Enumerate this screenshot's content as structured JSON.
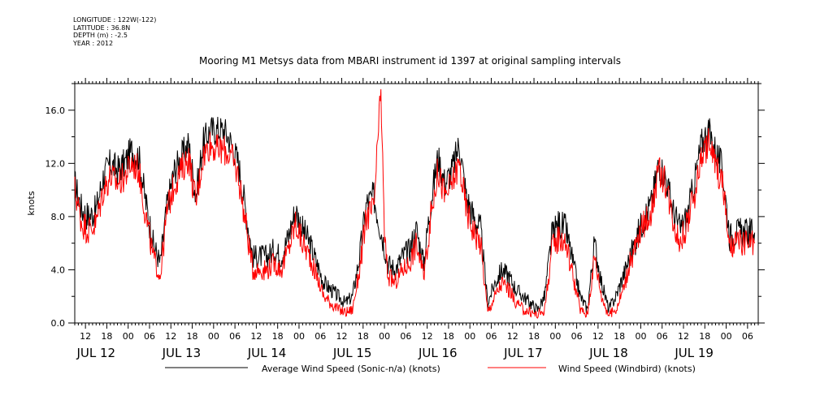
{
  "header": {
    "longitude": "LONGITUDE : 122W(-122)",
    "latitude": "LATITUDE : 36.8N",
    "depth": "DEPTH (m) : -2.5",
    "year": "YEAR : 2012"
  },
  "chart_data": {
    "type": "line",
    "title": "Mooring M1 Metsys data from MBARI instrument id 1397 at original sampling intervals",
    "ylabel": "knots",
    "xlabel": "",
    "ylim": [
      0,
      18
    ],
    "y_ticks": [
      "0.0",
      "4.0",
      "8.0",
      "12.0",
      "16.0"
    ],
    "x_hour_ticks": [
      "12",
      "18",
      "00",
      "06",
      "12",
      "18",
      "00",
      "06",
      "12",
      "18",
      "00",
      "06",
      "12",
      "18",
      "00",
      "06",
      "12",
      "18",
      "00",
      "06",
      "12",
      "18",
      "00",
      "06",
      "12",
      "18",
      "00",
      "06",
      "12",
      "18",
      "00",
      "06"
    ],
    "x_day_labels": [
      "JUL 12",
      "JUL 13",
      "JUL 14",
      "JUL 15",
      "JUL 16",
      "JUL 17",
      "JUL 18",
      "JUL 19"
    ],
    "x_range_hours": [
      9,
      201
    ],
    "grid": false,
    "legend_placement": "bottom",
    "series": [
      {
        "name": "Average Wind Speed (Sonic-n/a) (knots)",
        "color": "#000000",
        "x": [
          9,
          11,
          13,
          15,
          17,
          19,
          21,
          23,
          25,
          27,
          29,
          31,
          33,
          35,
          37,
          39,
          41,
          43,
          45,
          47,
          49,
          51,
          53,
          55,
          57,
          59,
          61,
          63,
          65,
          67,
          69,
          71,
          73,
          75,
          77,
          79,
          81,
          83,
          85,
          87,
          89,
          91,
          93,
          95,
          97,
          99,
          101,
          103,
          105,
          107,
          109,
          111,
          113,
          115,
          117,
          119,
          121,
          123,
          125,
          127,
          129,
          131,
          133,
          135,
          137,
          139,
          141,
          143,
          145,
          147,
          149,
          151,
          153,
          155,
          157,
          159,
          161,
          163,
          165,
          167,
          169,
          171,
          173,
          175,
          177,
          179,
          181,
          183,
          185,
          187,
          189,
          191,
          193,
          195,
          197,
          199,
          200
        ],
        "y": [
          10.5,
          8.5,
          8.0,
          8.5,
          11.0,
          12.0,
          11.5,
          12.0,
          13.0,
          12.5,
          9.0,
          6.0,
          4.5,
          9.0,
          11.5,
          12.5,
          13.5,
          9.5,
          13.5,
          14.5,
          14.5,
          14.5,
          13.5,
          12.0,
          8.5,
          5.0,
          5.0,
          5.0,
          5.5,
          5.0,
          6.5,
          8.5,
          7.0,
          6.0,
          4.5,
          3.0,
          2.5,
          2.0,
          1.5,
          2.0,
          5.0,
          9.0,
          9.5,
          7.0,
          4.5,
          4.0,
          5.0,
          5.5,
          7.0,
          4.5,
          9.0,
          12.5,
          10.5,
          11.5,
          13.5,
          9.5,
          8.0,
          7.0,
          1.5,
          3.0,
          4.0,
          3.5,
          2.5,
          2.0,
          1.5,
          1.0,
          2.0,
          6.5,
          7.5,
          7.0,
          4.5,
          2.0,
          1.0,
          6.0,
          3.0,
          1.0,
          2.0,
          3.5,
          5.0,
          6.5,
          8.0,
          9.0,
          12.0,
          11.0,
          8.5,
          7.0,
          8.0,
          10.5,
          13.5,
          14.5,
          13.0,
          11.5,
          6.5,
          6.8,
          6.8,
          6.8,
          6.8
        ]
      },
      {
        "name": "Wind Speed (Windbird) (knots)",
        "color": "#ff0000",
        "x": [
          9,
          11,
          13,
          15,
          17,
          19,
          21,
          23,
          25,
          27,
          29,
          31,
          33,
          35,
          37,
          39,
          41,
          43,
          45,
          47,
          49,
          51,
          53,
          55,
          57,
          59,
          61,
          63,
          65,
          67,
          69,
          71,
          73,
          75,
          77,
          79,
          81,
          83,
          85,
          87,
          89,
          91,
          93,
          95,
          96,
          97,
          99,
          101,
          103,
          105,
          107,
          109,
          111,
          113,
          115,
          117,
          119,
          121,
          123,
          125,
          127,
          129,
          131,
          133,
          135,
          137,
          139,
          141,
          143,
          145,
          147,
          149,
          151,
          153,
          155,
          157,
          159,
          161,
          163,
          165,
          167,
          169,
          171,
          173,
          175,
          177,
          179,
          181,
          183,
          185,
          187,
          189,
          191,
          193,
          195,
          197,
          199,
          200
        ],
        "y": [
          10.0,
          7.5,
          7.0,
          7.5,
          10.0,
          11.0,
          10.5,
          11.0,
          12.0,
          11.5,
          8.0,
          5.0,
          3.5,
          8.5,
          10.5,
          11.5,
          12.5,
          9.0,
          12.5,
          13.5,
          13.0,
          13.0,
          12.5,
          11.0,
          7.5,
          4.0,
          4.0,
          4.0,
          4.5,
          4.0,
          5.5,
          7.5,
          6.0,
          5.0,
          3.5,
          2.0,
          1.5,
          1.0,
          0.8,
          1.0,
          4.0,
          8.0,
          8.5,
          17.5,
          6.5,
          3.5,
          3.0,
          4.0,
          4.5,
          6.0,
          3.5,
          8.0,
          11.5,
          9.5,
          10.5,
          12.0,
          8.5,
          7.0,
          6.0,
          0.8,
          2.0,
          3.0,
          2.5,
          1.5,
          1.0,
          0.8,
          0.6,
          1.0,
          5.5,
          6.5,
          6.0,
          3.5,
          1.0,
          0.6,
          5.0,
          2.0,
          0.6,
          1.0,
          2.5,
          4.5,
          6.0,
          7.5,
          8.5,
          11.5,
          10.5,
          8.0,
          6.0,
          7.5,
          9.5,
          12.5,
          13.5,
          12.0,
          10.5,
          5.5,
          6.0,
          6.0,
          6.0,
          6.0
        ]
      }
    ]
  }
}
